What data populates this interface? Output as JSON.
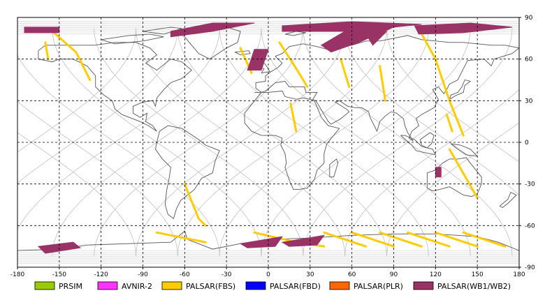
{
  "map": {
    "x_ticks": [
      -180,
      -150,
      -120,
      -90,
      -60,
      -30,
      0,
      30,
      60,
      90,
      120,
      150,
      180
    ],
    "y_ticks": [
      90,
      60,
      30,
      0,
      -30,
      -60,
      -90
    ],
    "lon_range": [
      -180,
      180
    ],
    "lat_range": [
      -90,
      90
    ],
    "grid": "dashed",
    "colors": {
      "coastline": "#555555",
      "orbit_track": "#c0c0c0",
      "grid": "#000000"
    }
  },
  "legend": [
    {
      "label": "PRSIM",
      "color": "#99cc00"
    },
    {
      "label": "AVNIR-2",
      "color": "#ff33ff"
    },
    {
      "label": "PALSAR(FBS)",
      "color": "#ffcc00"
    },
    {
      "label": "PALSAR(FBD)",
      "color": "#0000ff"
    },
    {
      "label": "PALSAR(PLR)",
      "color": "#ff6600"
    },
    {
      "label": "PALSAR(WB1/WB2)",
      "color": "#993366"
    }
  ],
  "chart_data": {
    "type": "scatter",
    "xlim": [
      -180,
      180
    ],
    "ylim": [
      -90,
      90
    ],
    "series": [
      {
        "name": "PALSAR(FBS)",
        "swaths": [
          [
            [
              -155,
              80
            ],
            [
              -138,
              65
            ],
            [
              -128,
              45
            ]
          ],
          [
            [
              -160,
              72
            ],
            [
              -158,
              60
            ]
          ],
          [
            [
              -20,
              68
            ],
            [
              -12,
              50
            ]
          ],
          [
            [
              8,
              72
            ],
            [
              22,
              50
            ],
            [
              28,
              40
            ]
          ],
          [
            [
              16,
              28
            ],
            [
              20,
              8
            ]
          ],
          [
            [
              52,
              60
            ],
            [
              58,
              40
            ]
          ],
          [
            [
              80,
              55
            ],
            [
              84,
              30
            ]
          ],
          [
            [
              108,
              82
            ],
            [
              120,
              60
            ],
            [
              130,
              30
            ],
            [
              140,
              5
            ]
          ],
          [
            [
              128,
              20
            ],
            [
              132,
              8
            ]
          ],
          [
            [
              -60,
              -30
            ],
            [
              -50,
              -55
            ],
            [
              -45,
              -60
            ]
          ],
          [
            [
              130,
              -5
            ],
            [
              150,
              -40
            ]
          ],
          [
            [
              -80,
              -65
            ],
            [
              -45,
              -72
            ]
          ],
          [
            [
              -10,
              -65
            ],
            [
              20,
              -72
            ],
            [
              40,
              -75
            ]
          ],
          [
            [
              40,
              -65
            ],
            [
              70,
              -75
            ]
          ],
          [
            [
              60,
              -65
            ],
            [
              90,
              -75
            ]
          ],
          [
            [
              80,
              -65
            ],
            [
              110,
              -75
            ]
          ],
          [
            [
              100,
              -65
            ],
            [
              130,
              -75
            ]
          ],
          [
            [
              120,
              -65
            ],
            [
              150,
              -75
            ]
          ],
          [
            [
              140,
              -65
            ],
            [
              170,
              -75
            ]
          ]
        ]
      },
      {
        "name": "PALSAR(WB1/WB2)",
        "swaths": [
          [
            [
              -175,
              83
            ],
            [
              -150,
              83
            ],
            [
              -150,
              79
            ],
            [
              -175,
              79
            ]
          ],
          [
            [
              -70,
              80
            ],
            [
              -40,
              86
            ],
            [
              -10,
              86
            ],
            [
              -40,
              80
            ],
            [
              -70,
              76
            ]
          ],
          [
            [
              -10,
              67
            ],
            [
              0,
              67
            ],
            [
              -5,
              52
            ],
            [
              -15,
              52
            ]
          ],
          [
            [
              10,
              84
            ],
            [
              60,
              87
            ],
            [
              110,
              85
            ],
            [
              60,
              80
            ],
            [
              10,
              80
            ]
          ],
          [
            [
              55,
              80
            ],
            [
              90,
              83
            ],
            [
              65,
              72
            ],
            [
              45,
              65
            ],
            [
              38,
              70
            ]
          ],
          [
            [
              70,
              78
            ],
            [
              85,
              80
            ],
            [
              75,
              70
            ]
          ],
          [
            [
              105,
              84
            ],
            [
              145,
              86
            ],
            [
              175,
              83
            ],
            [
              140,
              79
            ],
            [
              108,
              78
            ]
          ],
          [
            [
              -165,
              -75
            ],
            [
              -140,
              -72
            ],
            [
              -135,
              -76
            ],
            [
              -160,
              -80
            ]
          ],
          [
            [
              -20,
              -73
            ],
            [
              10,
              -68
            ],
            [
              5,
              -75
            ],
            [
              -15,
              -76
            ]
          ],
          [
            [
              10,
              -72
            ],
            [
              40,
              -67
            ],
            [
              35,
              -74
            ],
            [
              15,
              -75
            ]
          ],
          [
            [
              120,
              -18
            ],
            [
              124,
              -18
            ],
            [
              124,
              -25
            ],
            [
              120,
              -25
            ]
          ]
        ]
      }
    ]
  }
}
